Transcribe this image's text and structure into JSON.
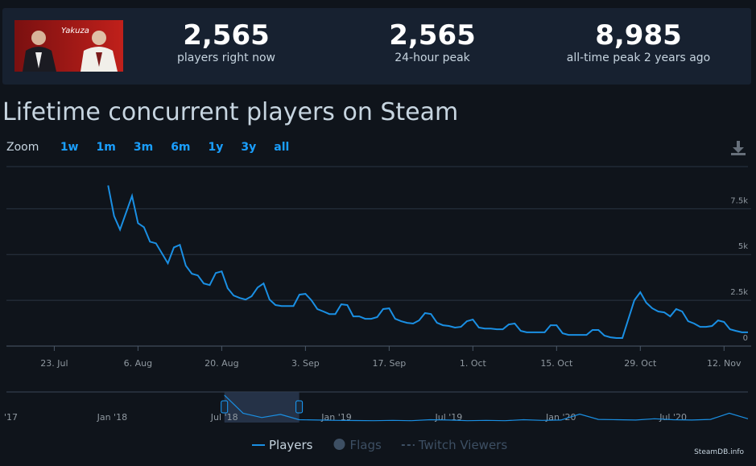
{
  "header": {
    "stats": [
      {
        "value": "2,565",
        "label": "players right now"
      },
      {
        "value": "2,565",
        "label": "24-hour peak"
      },
      {
        "value": "8,985",
        "label": "all-time peak 2 years ago"
      }
    ]
  },
  "zoom": {
    "label": "Zoom",
    "buttons": [
      "1w",
      "1m",
      "3m",
      "6m",
      "1y",
      "3y",
      "all"
    ]
  },
  "credit": "SteamDB.info",
  "chart_data": {
    "type": "line",
    "title": "Lifetime concurrent players on Steam",
    "x": [
      "1. Aug",
      "2. Aug",
      "3. Aug",
      "5. Aug",
      "6. Aug",
      "7. Aug",
      "8. Aug",
      "9. Aug",
      "11. Aug",
      "12. Aug",
      "13. Aug",
      "14. Aug",
      "15. Aug",
      "16. Aug",
      "17. Aug",
      "18. Aug",
      "19. Aug",
      "20. Aug",
      "21. Aug",
      "22. Aug",
      "23. Aug",
      "24. Aug",
      "25. Aug",
      "26. Aug",
      "27. Aug",
      "28. Aug",
      "29. Aug",
      "30. Aug",
      "1. Sep",
      "2. Sep",
      "3. Sep",
      "4. Sep",
      "5. Sep",
      "6. Sep",
      "7. Sep",
      "8. Sep",
      "9. Sep",
      "10. Sep",
      "11. Sep",
      "12. Sep",
      "13. Sep",
      "14. Sep",
      "15. Sep",
      "16. Sep",
      "17. Sep",
      "18. Sep",
      "19. Sep",
      "20. Sep",
      "21. Sep",
      "22. Sep",
      "23. Sep",
      "24. Sep",
      "25. Sep",
      "26. Sep",
      "27. Sep",
      "28. Sep",
      "29. Sep",
      "30. Sep",
      "1. Oct",
      "2. Oct",
      "3. Oct",
      "4. Oct",
      "5. Oct",
      "6. Oct",
      "7. Oct",
      "8. Oct",
      "9. Oct",
      "10. Oct",
      "11. Oct",
      "12. Oct",
      "13. Oct",
      "14. Oct",
      "15. Oct",
      "16. Oct",
      "17. Oct",
      "18. Oct",
      "19. Oct",
      "20. Oct",
      "21. Oct",
      "22. Oct",
      "23. Oct",
      "24. Oct",
      "25. Oct",
      "26. Oct",
      "28. Oct",
      "29. Oct",
      "30. Oct",
      "31. Oct",
      "1. Nov",
      "2. Nov",
      "3. Nov",
      "4. Nov",
      "5. Nov",
      "6. Nov",
      "7. Nov",
      "8. Nov",
      "9. Nov",
      "10. Nov",
      "11. Nov",
      "12. Nov",
      "13. Nov",
      "14. Nov",
      "15. Nov",
      "16. Nov"
    ],
    "series": [
      {
        "name": "Players",
        "color": "#1a8fe3",
        "values": [
          8770,
          7100,
          6360,
          8200,
          6710,
          6490,
          5700,
          5610,
          4520,
          5390,
          5530,
          4390,
          3950,
          3860,
          3420,
          3330,
          3990,
          4080,
          3160,
          2760,
          2630,
          2540,
          2720,
          3200,
          3420,
          2540,
          2240,
          2190,
          2190,
          2810,
          2850,
          2500,
          2020,
          1890,
          1750,
          1750,
          2280,
          2240,
          1620,
          1620,
          1490,
          1490,
          1580,
          2020,
          2060,
          1490,
          1360,
          1270,
          1230,
          1400,
          1800,
          1750,
          1270,
          1140,
          1100,
          1010,
          1050,
          1360,
          1450,
          1010,
          960,
          960,
          920,
          920,
          1180,
          1230,
          830,
          750,
          750,
          750,
          750,
          1140,
          1140,
          700,
          610,
          610,
          610,
          610,
          880,
          880,
          570,
          480,
          440,
          440,
          2500,
          2940,
          2370,
          2060,
          1890,
          1840,
          1620,
          2020,
          1890,
          1360,
          1230,
          1050,
          1050,
          1100,
          1400,
          1320,
          920,
          830,
          750,
          750
        ]
      }
    ],
    "inactive_series": [
      {
        "name": "Flags",
        "color": "#3d4f63"
      },
      {
        "name": "Twitch Viewers",
        "color": "#3d4f63"
      }
    ],
    "xlim": [
      "15. Jul",
      "16. Nov"
    ],
    "xticks": [
      "23. Jul",
      "6. Aug",
      "20. Aug",
      "3. Sep",
      "17. Sep",
      "1. Oct",
      "15. Oct",
      "29. Oct",
      "12. Nov"
    ],
    "ylim": [
      0,
      9800
    ],
    "yticks": [
      0,
      {
        "value": 2500,
        "label": "2.5k"
      },
      {
        "value": 5000,
        "label": "5k"
      },
      {
        "value": 7500,
        "label": "7.5k"
      }
    ],
    "grid": true,
    "navigator": {
      "x": [
        "Jul '18",
        "Aug '18",
        "Sep '18",
        "Oct '18",
        "Nov '18",
        "Dec '18",
        "Jan '19",
        "Feb '19",
        "Mar '19",
        "Apr '19",
        "May '19",
        "Jun '19",
        "Jul '19",
        "Aug '19",
        "Sep '19",
        "Oct '19",
        "Nov '19",
        "Dec '19",
        "Jan '20",
        "Feb '20",
        "Mar '20",
        "Apr '20",
        "May '20",
        "Jun '20",
        "Jul '20",
        "Aug '20",
        "Sep '20",
        "Oct '20",
        "Nov '20"
      ],
      "values": [
        8800,
        3000,
        1600,
        2600,
        900,
        800,
        700,
        650,
        600,
        700,
        600,
        900,
        800,
        600,
        700,
        600,
        900,
        700,
        800,
        2700,
        1000,
        900,
        800,
        1200,
        900,
        800,
        1000,
        3000,
        1200
      ],
      "xlim": [
        "Jul '17",
        "Nov '20"
      ],
      "xticks": [
        {
          "value": "Jul '17",
          "label": "'17"
        },
        "Jan '18",
        "Jul '18",
        "Jan '19",
        "Jul '19",
        "Jan '20",
        "Jul '20"
      ],
      "selection": [
        "Jul '18",
        "Nov '18"
      ]
    }
  }
}
